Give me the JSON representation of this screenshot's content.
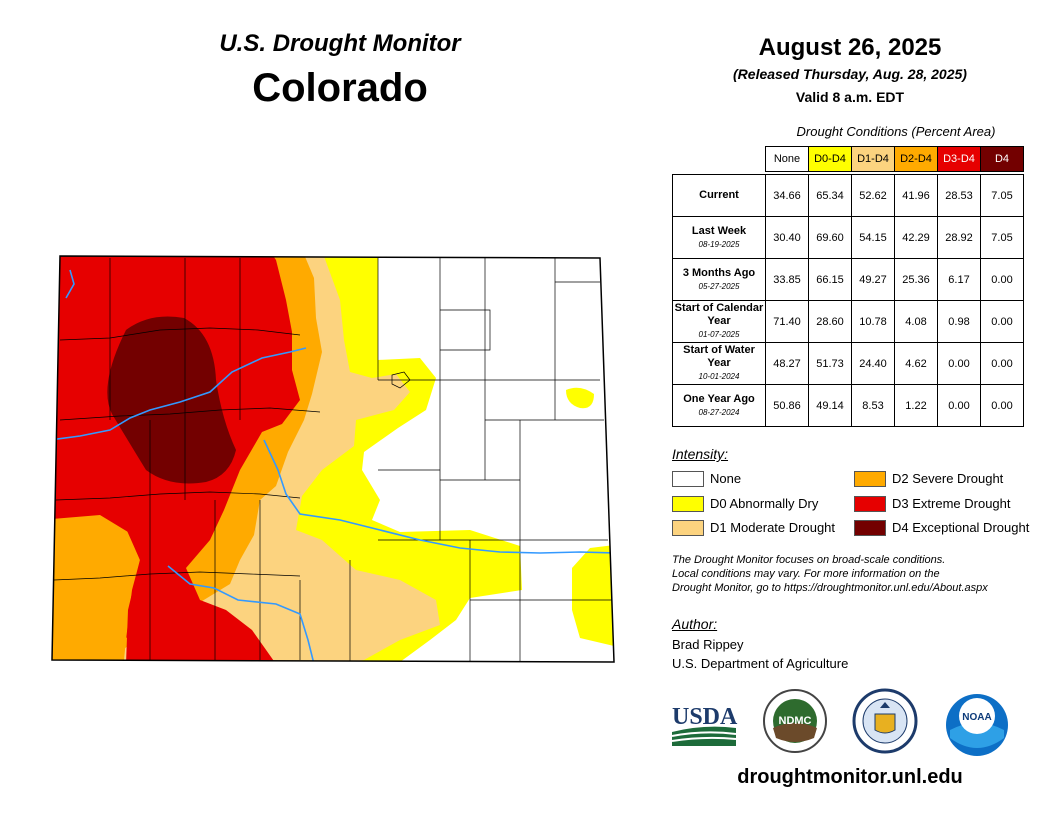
{
  "header": {
    "title": "U.S. Drought Monitor",
    "state": "Colorado",
    "date": "August 26, 2025",
    "released": "(Released Thursday, Aug. 28, 2025)",
    "valid": "Valid 8 a.m. EDT"
  },
  "table": {
    "caption": "Drought Conditions (Percent Area)",
    "columns": [
      "None",
      "D0-D4",
      "D1-D4",
      "D2-D4",
      "D3-D4",
      "D4"
    ],
    "rows": [
      {
        "label": "Current",
        "date": "",
        "values": [
          "34.66",
          "65.34",
          "52.62",
          "41.96",
          "28.53",
          "7.05"
        ]
      },
      {
        "label": "Last Week",
        "date": "08-19-2025",
        "values": [
          "30.40",
          "69.60",
          "54.15",
          "42.29",
          "28.92",
          "7.05"
        ]
      },
      {
        "label": "3 Months Ago",
        "date": "05-27-2025",
        "values": [
          "33.85",
          "66.15",
          "49.27",
          "25.36",
          "6.17",
          "0.00"
        ]
      },
      {
        "label": "Start of Calendar Year",
        "date": "01-07-2025",
        "values": [
          "71.40",
          "28.60",
          "10.78",
          "4.08",
          "0.98",
          "0.00"
        ]
      },
      {
        "label": "Start of Water Year",
        "date": "10-01-2024",
        "values": [
          "48.27",
          "51.73",
          "24.40",
          "4.62",
          "0.00",
          "0.00"
        ]
      },
      {
        "label": "One Year Ago",
        "date": "08-27-2024",
        "values": [
          "50.86",
          "49.14",
          "8.53",
          "1.22",
          "0.00",
          "0.00"
        ]
      }
    ]
  },
  "legend": {
    "title": "Intensity:",
    "items": [
      {
        "label": "None",
        "color": "#ffffff"
      },
      {
        "label": "D0 Abnormally Dry",
        "color": "#ffff00"
      },
      {
        "label": "D1 Moderate Drought",
        "color": "#fcd37f"
      },
      {
        "label": "D2 Severe Drought",
        "color": "#ffaa00"
      },
      {
        "label": "D3 Extreme Drought",
        "color": "#e60000"
      },
      {
        "label": "D4 Exceptional Drought",
        "color": "#730000"
      }
    ]
  },
  "disclaimer": {
    "line1": "The Drought Monitor focuses on broad-scale conditions.",
    "line2": "Local conditions may vary. For more information on the",
    "line3": "Drought Monitor, go to https://droughtmonitor.unl.edu/About.aspx"
  },
  "author": {
    "title": "Author:",
    "name": "Brad Rippey",
    "org": "U.S. Department of Agriculture"
  },
  "logos": {
    "usda": "USDA",
    "ndmc": "NDMC",
    "noaa": "NOAA"
  },
  "website": "droughtmonitor.unl.edu",
  "colors": {
    "d0": "#ffff00",
    "d1": "#fcd37f",
    "d2": "#ffaa00",
    "d3": "#e60000",
    "d4": "#730000",
    "river": "#3399ff"
  }
}
